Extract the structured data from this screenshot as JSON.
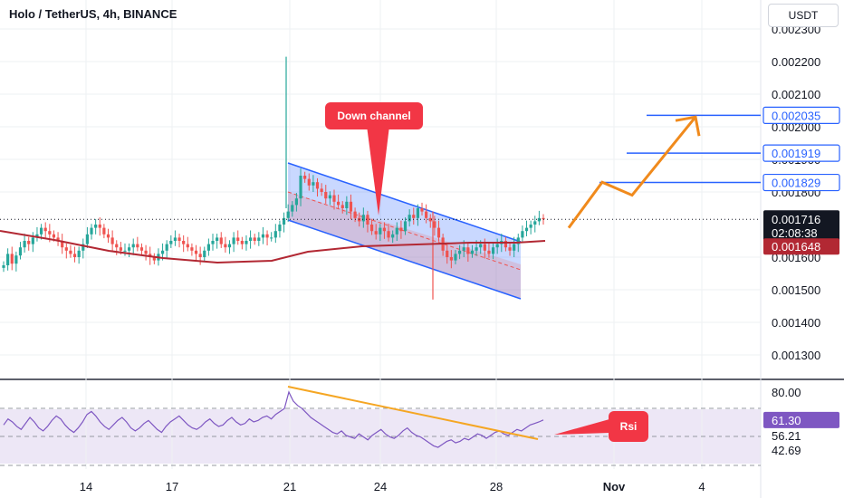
{
  "header": {
    "title": "Holo / TetherUS, 4h, BINANCE",
    "currency_button": "USDT"
  },
  "chart_data": [
    {
      "type": "candlestick",
      "title": "Holo / TetherUS, 4h, BINANCE",
      "ylim": [
        0.00118,
        0.00236
      ],
      "y_ticks": [
        "0.002300",
        "0.002200",
        "0.002100",
        "0.002000",
        "0.001900",
        "0.001800",
        "0.001600",
        "0.001500",
        "0.001400",
        "0.001300"
      ],
      "x_ticks": [
        "14",
        "17",
        "21",
        "24",
        "28",
        "Nov",
        "4"
      ],
      "last_price": {
        "value": "0.001716",
        "countdown": "02:08:38",
        "color": "#131722"
      },
      "moving_average": {
        "value": "0.001648",
        "color": "#b22833"
      },
      "level_lines": [
        {
          "value": "0.002035",
          "color": "#2962ff"
        },
        {
          "value": "0.001919",
          "color": "#2962ff"
        },
        {
          "value": "0.001829",
          "color": "#2962ff"
        }
      ],
      "annotations": {
        "down_channel": "Down channel",
        "rsi": "Rsi"
      },
      "candle_colors": {
        "up": "#26a69a",
        "down": "#ef5350"
      },
      "price_path": [
        [
          0.001575,
          0.00161,
          0.00158,
          0.001605,
          0.00163,
          0.00165,
          0.00164,
          0.00166,
          0.00167,
          0.00169,
          0.00168,
          0.00167,
          0.00166,
          0.00165,
          0.00163,
          0.00162,
          0.00161,
          0.0016,
          0.00162,
          0.00164,
          0.00167,
          0.00169,
          0.0017,
          0.00169,
          0.00167,
          0.00166,
          0.00164,
          0.00163,
          0.00162,
          0.00162,
          0.00163,
          0.00164,
          0.00163,
          0.00162,
          0.00161,
          0.0016,
          0.00159,
          0.00161,
          0.00162,
          0.00164,
          0.00165,
          0.00166,
          0.00165,
          0.00164,
          0.00163,
          0.00162,
          0.00161,
          0.0016,
          0.00162,
          0.00164,
          0.00165,
          0.00166,
          0.00164,
          0.00163,
          0.00164,
          0.00166,
          0.00165,
          0.00164,
          0.00165,
          0.00166,
          0.00165,
          0.00166,
          0.00167,
          0.00166,
          0.00166,
          0.00168,
          0.0017,
          0.00172,
          0.00174,
          0.00176,
          0.00178,
          0.00185,
          0.00184,
          0.00182,
          0.00183,
          0.00181,
          0.0018,
          0.00178,
          0.00179,
          0.00177,
          0.00176,
          0.00175,
          0.00177,
          0.00174,
          0.00172,
          0.00171,
          0.00173,
          0.0017,
          0.00168,
          0.00167,
          0.00169,
          0.00168,
          0.00166,
          0.00167,
          0.00169,
          0.00168,
          0.00171,
          0.00173,
          0.00172,
          0.00175,
          0.00174,
          0.00172,
          0.00171,
          0.00169,
          0.00166,
          0.00162,
          0.0016,
          0.00159,
          0.00161,
          0.00162,
          0.00163,
          0.00161,
          0.00162,
          0.00163,
          0.00164,
          0.00162,
          0.00161,
          0.00163,
          0.00164,
          0.00165,
          0.00163,
          0.00162,
          0.00164,
          0.00166,
          0.00168,
          0.00169,
          0.0017,
          0.00171,
          0.00172,
          0.001716
        ]
      ],
      "projection": {
        "points": [
          0.00169,
          0.00183,
          0.00179,
          0.00203
        ],
        "color": "#f08a1c"
      }
    },
    {
      "type": "line",
      "title": "RSI",
      "ylim": [
        30,
        88
      ],
      "y_ticks": [
        "80.00",
        "56.21",
        "42.69"
      ],
      "current_value": "61.30",
      "series_color": "#7e57c2",
      "trendline_color": "#f5a623",
      "values": [
        58,
        62,
        60,
        57,
        55,
        59,
        63,
        60,
        56,
        54,
        57,
        61,
        64,
        62,
        58,
        55,
        53,
        56,
        60,
        65,
        67,
        64,
        60,
        57,
        55,
        58,
        61,
        63,
        60,
        56,
        54,
        56,
        59,
        61,
        58,
        55,
        53,
        57,
        60,
        62,
        64,
        61,
        58,
        56,
        55,
        57,
        60,
        62,
        59,
        57,
        58,
        61,
        63,
        60,
        58,
        59,
        62,
        60,
        61,
        63,
        64,
        62,
        65,
        67,
        69,
        80,
        74,
        71,
        69,
        66,
        63,
        61,
        59,
        57,
        55,
        53,
        52,
        54,
        51,
        50,
        49,
        52,
        50,
        48,
        51,
        53,
        55,
        52,
        50,
        49,
        51,
        54,
        56,
        53,
        51,
        50,
        48,
        46,
        44,
        43,
        45,
        47,
        48,
        46,
        47,
        49,
        48,
        50,
        52,
        51,
        49,
        51,
        53,
        54,
        52,
        51,
        53,
        55,
        54,
        56,
        58,
        59,
        60,
        61.3
      ]
    }
  ]
}
